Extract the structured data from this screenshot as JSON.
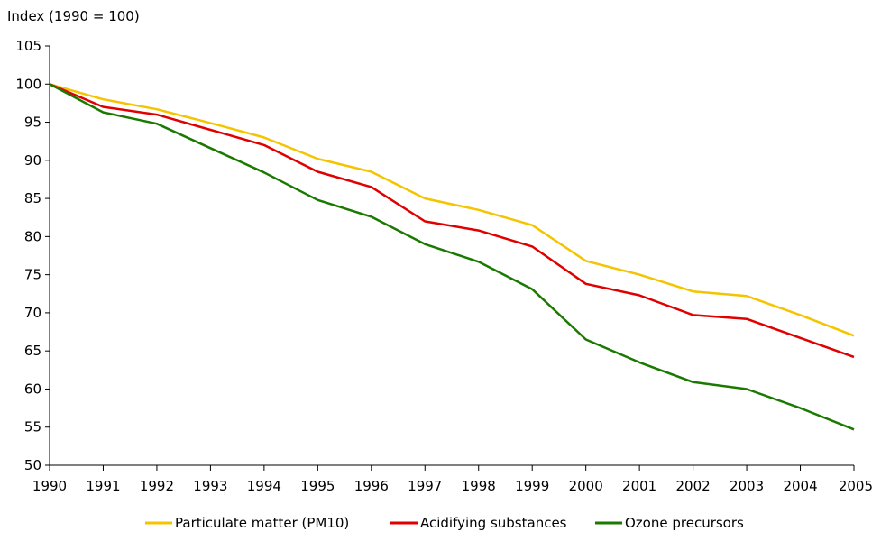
{
  "chart_data": {
    "type": "line",
    "title": "",
    "ylabel": "Index (1990 = 100)",
    "xlabel": "",
    "x": [
      "1990",
      "1991",
      "1992",
      "1993",
      "1994",
      "1995",
      "1996",
      "1997",
      "1998",
      "1999",
      "2000",
      "2001",
      "2002",
      "2003",
      "2004",
      "2005"
    ],
    "yticks": [
      50,
      55,
      60,
      65,
      70,
      75,
      80,
      85,
      90,
      95,
      100,
      105
    ],
    "ylim": [
      50,
      105
    ],
    "grid": false,
    "legend_position": "bottom",
    "series": [
      {
        "name": "Particulate matter (PM10)",
        "color": "#f5c400",
        "values": [
          100,
          98.0,
          96.7,
          94.9,
          93.0,
          90.2,
          88.5,
          85.0,
          83.5,
          81.5,
          76.8,
          75.0,
          72.8,
          72.2,
          69.7,
          67.0
        ]
      },
      {
        "name": "Acidifying substances",
        "color": "#e00000",
        "values": [
          100,
          97.0,
          96.0,
          94.0,
          92.0,
          88.5,
          86.5,
          82.0,
          80.8,
          78.7,
          73.8,
          72.3,
          69.7,
          69.2,
          66.7,
          64.2
        ]
      },
      {
        "name": "Ozone precursors",
        "color": "#1a7a00",
        "values": [
          100,
          96.3,
          94.8,
          91.6,
          88.4,
          84.8,
          82.6,
          79.0,
          76.7,
          73.1,
          66.5,
          63.5,
          60.9,
          60.0,
          57.5,
          54.7
        ]
      }
    ]
  }
}
